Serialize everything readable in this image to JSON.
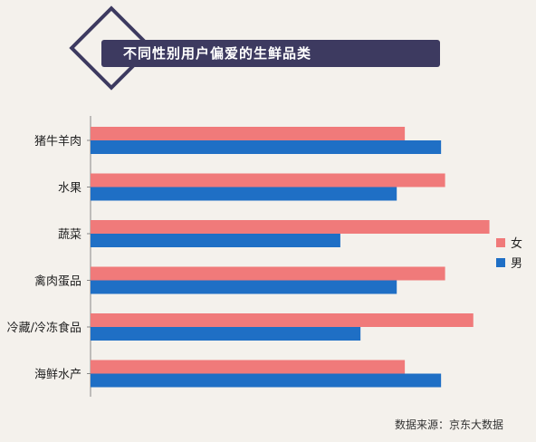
{
  "title": "不同性别用户偏爱的生鲜品类",
  "source": "数据来源：京东大数据",
  "chart_data": {
    "type": "bar",
    "orientation": "horizontal",
    "title": "不同性别用户偏爱的生鲜品类",
    "categories": [
      "猪牛羊肉",
      "水果",
      "蔬菜",
      "禽肉蛋品",
      "冷藏/冷冻食品",
      "海鲜水产"
    ],
    "series": [
      {
        "name": "女",
        "color": "#f07a7a",
        "values": [
          0.78,
          0.88,
          0.99,
          0.88,
          0.95,
          0.78
        ]
      },
      {
        "name": "男",
        "color": "#1f6fc5",
        "values": [
          0.87,
          0.76,
          0.62,
          0.76,
          0.67,
          0.87
        ]
      }
    ],
    "xlim": [
      0,
      1
    ],
    "legend": "right",
    "grid": false
  }
}
